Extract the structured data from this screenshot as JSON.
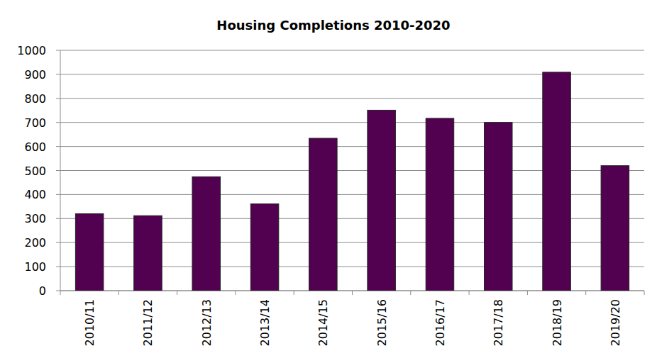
{
  "chart_data": {
    "type": "bar",
    "title": "Housing Completions 2010-2020",
    "categories": [
      "2010/11",
      "2011/12",
      "2012/13",
      "2013/14",
      "2014/15",
      "2015/16",
      "2016/17",
      "2017/18",
      "2018/19",
      "2019/20"
    ],
    "values": [
      320,
      312,
      474,
      361,
      634,
      751,
      717,
      700,
      909,
      520
    ],
    "color": "#520050",
    "ylim": [
      0,
      1000
    ],
    "yticks": [
      0,
      100,
      200,
      300,
      400,
      500,
      600,
      700,
      800,
      900,
      1000
    ],
    "grid": true
  }
}
